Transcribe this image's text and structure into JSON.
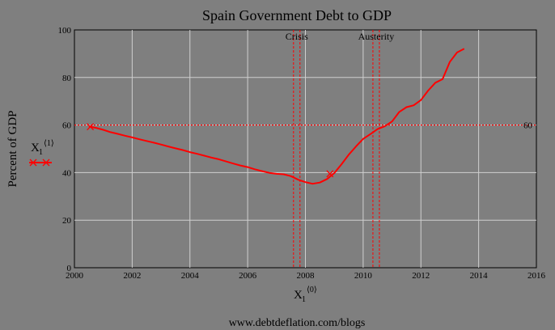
{
  "page": {
    "background": "#7f7f7f",
    "footer": "www.debtdeflation.com/blogs"
  },
  "chart_data": {
    "type": "line",
    "title": "Spain Government Debt to GDP",
    "ylabel": "Percent of GDP",
    "xlabel_base": "X",
    "xlabel_sub": "1",
    "xlabel_sup": "⟨0⟩",
    "xlim": [
      2000,
      2016
    ],
    "ylim": [
      0,
      100
    ],
    "x_ticks": [
      "2000",
      "2002",
      "2004",
      "2006",
      "2008",
      "2010",
      "2012",
      "2014",
      "2016"
    ],
    "y_ticks": [
      "0",
      "20",
      "40",
      "60",
      "80",
      "100"
    ],
    "grid": true,
    "legend": {
      "placement": "left",
      "label_base": "X",
      "label_sub": "1",
      "label_sup": "⟨1⟩"
    },
    "reference_line": {
      "y": 60,
      "label": "60",
      "color": "#ff0000"
    },
    "vertical_markers": [
      {
        "x": 2007.7,
        "label": "Crisis"
      },
      {
        "x": 2010.45,
        "label": "Austerity"
      }
    ],
    "colors": {
      "series": "#ff0000",
      "grid": "#cfcfcf",
      "axes": "#000000"
    },
    "series": [
      {
        "x": [
          2000.5,
          2000.75,
          2001.0,
          2001.25,
          2001.5,
          2001.75,
          2002.0,
          2002.25,
          2002.5,
          2002.75,
          2003.0,
          2003.25,
          2003.5,
          2003.75,
          2004.0,
          2004.25,
          2004.5,
          2004.75,
          2005.0,
          2005.25,
          2005.5,
          2005.75,
          2006.0,
          2006.25,
          2006.5,
          2006.75,
          2007.0,
          2007.25,
          2007.5,
          2007.75,
          2008.0,
          2008.25,
          2008.5,
          2008.75,
          2009.0,
          2009.25,
          2009.5,
          2009.75,
          2010.0,
          2010.25,
          2010.5,
          2010.75,
          2011.0,
          2011.25,
          2011.5,
          2011.75,
          2012.0,
          2012.25,
          2012.5,
          2012.75,
          2013.0,
          2013.25,
          2013.5
        ],
        "y": [
          59.4,
          58.8,
          58.0,
          57.0,
          56.3,
          55.5,
          54.8,
          54.0,
          53.3,
          52.6,
          51.8,
          51.0,
          50.2,
          49.5,
          48.6,
          47.9,
          47.1,
          46.3,
          45.6,
          44.7,
          43.8,
          43.0,
          42.3,
          41.4,
          40.6,
          39.9,
          39.5,
          39.3,
          38.5,
          37.0,
          36.0,
          35.3,
          35.8,
          37.3,
          39.8,
          43.5,
          47.5,
          51.0,
          54.2,
          56.2,
          58.3,
          59.5,
          61.5,
          65.5,
          67.5,
          68.3,
          70.5,
          74.5,
          77.8,
          79.3,
          86.5,
          90.5,
          92.1
        ]
      }
    ],
    "markers": [
      {
        "x": 2000.55,
        "y": 59.3
      },
      {
        "x": 2008.85,
        "y": 39.5
      }
    ]
  }
}
